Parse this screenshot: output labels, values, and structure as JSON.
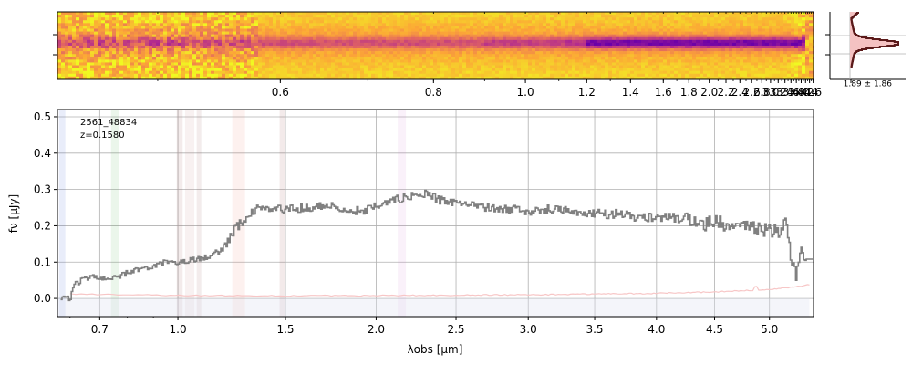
{
  "chart_data": [
    {
      "type": "heatmap",
      "panel": "2d-spectrum",
      "colormap": "plasma_r",
      "x_axis_scale": "reciprocal",
      "xlim": [
        0.44,
        4.62
      ],
      "x_tick_labels": [
        "0.6",
        "0.8",
        "1.0",
        "1.2",
        "1.4",
        "1.6",
        "1.8",
        "2.0",
        "2.2",
        "2.4",
        "2.6",
        "2.8",
        "3.0",
        "3.2",
        "3.4",
        "3.6",
        "3.8",
        "4.0",
        "4.2",
        "4.4",
        "4.6"
      ],
      "x_tick_values": [
        0.6,
        0.8,
        1.0,
        1.2,
        1.4,
        1.6,
        1.8,
        2.0,
        2.2,
        2.4,
        2.6,
        2.8,
        3.0,
        3.2,
        3.4,
        3.6,
        3.8,
        4.0,
        4.2,
        4.4,
        4.6
      ],
      "trace_onset_um": 1.2,
      "colors": {
        "background_low": "#fca636",
        "mid": "#e16462",
        "trace_high": "#7a0da8",
        "edge_noise": "#f0f921"
      }
    },
    {
      "type": "line",
      "panel": "cross-dispersion-profile",
      "annotation": "1.89 ± 1.86",
      "profile_fill_color": "#f4c2c2",
      "profile_line_color": "#5b1a1a"
    },
    {
      "type": "line",
      "panel": "1d-spectrum",
      "x_axis_scale": "sqrt",
      "xlim": [
        0.56,
        5.42
      ],
      "ylim": [
        -0.05,
        0.52
      ],
      "x_tick_labels": [
        "0.7",
        "1.0",
        "1.5",
        "2.0",
        "2.5",
        "3.0",
        "3.5",
        "4.0",
        "4.5",
        "5.0"
      ],
      "x_tick_values": [
        0.7,
        1.0,
        1.5,
        2.0,
        2.5,
        3.0,
        3.5,
        4.0,
        4.5,
        5.0
      ],
      "x_minor_ticks": [
        0.6,
        0.8,
        0.9
      ],
      "y_tick_labels": [
        "0.0",
        "0.1",
        "0.2",
        "0.3",
        "0.4",
        "0.5"
      ],
      "y_tick_values": [
        0.0,
        0.1,
        0.2,
        0.3,
        0.4,
        0.5
      ],
      "xlabel": "λobs [μm]",
      "ylabel": "fν [μJy]",
      "grid": true,
      "annotations": [
        "2561_48834",
        "z=0.1580"
      ],
      "series": [
        {
          "kind": "flux",
          "color": "#808080",
          "style": "steps",
          "x": [
            0.57,
            0.6,
            0.61,
            0.65,
            0.7,
            0.75,
            0.8,
            0.85,
            0.9,
            0.95,
            1.0,
            1.05,
            1.1,
            1.15,
            1.2,
            1.25,
            1.3,
            1.35,
            1.4,
            1.5,
            1.6,
            1.7,
            1.8,
            1.9,
            2.0,
            2.1,
            2.2,
            2.3,
            2.4,
            2.5,
            2.6,
            2.7,
            2.8,
            2.9,
            3.0,
            3.1,
            3.2,
            3.3,
            3.4,
            3.5,
            3.6,
            3.7,
            3.8,
            3.9,
            4.0,
            4.1,
            4.2,
            4.3,
            4.4,
            4.5,
            4.6,
            4.7,
            4.8,
            4.9,
            5.0,
            5.1,
            5.15,
            5.2,
            5.25,
            5.3,
            5.35
          ],
          "y": [
            0.005,
            0.0,
            0.035,
            0.055,
            0.06,
            0.055,
            0.07,
            0.08,
            0.09,
            0.1,
            0.1,
            0.105,
            0.11,
            0.12,
            0.14,
            0.19,
            0.22,
            0.245,
            0.25,
            0.245,
            0.25,
            0.255,
            0.25,
            0.24,
            0.255,
            0.27,
            0.28,
            0.29,
            0.27,
            0.265,
            0.255,
            0.25,
            0.245,
            0.245,
            0.24,
            0.245,
            0.245,
            0.24,
            0.235,
            0.235,
            0.23,
            0.235,
            0.225,
            0.225,
            0.22,
            0.225,
            0.22,
            0.215,
            0.205,
            0.21,
            0.205,
            0.19,
            0.2,
            0.19,
            0.185,
            0.185,
            0.215,
            0.1,
            0.06,
            0.14,
            0.11
          ]
        },
        {
          "kind": "error",
          "color": "#f7c6c6",
          "x": [
            0.6,
            1.0,
            1.5,
            2.0,
            2.5,
            3.0,
            3.5,
            4.0,
            4.5,
            4.8,
            5.0,
            5.2,
            5.38
          ],
          "y": [
            0.012,
            0.008,
            0.007,
            0.008,
            0.009,
            0.01,
            0.012,
            0.014,
            0.018,
            0.022,
            0.025,
            0.03,
            0.038
          ]
        }
      ],
      "bands": [
        {
          "x0": 0.565,
          "x1": 0.585,
          "color": "#4a6fd6",
          "opacity": 0.12
        },
        {
          "x0": 0.74,
          "x1": 0.77,
          "color": "#57b35c",
          "opacity": 0.12
        },
        {
          "x0": 0.995,
          "x1": 1.02,
          "color": "#9c5a5a",
          "opacity": 0.12
        },
        {
          "x0": 1.03,
          "x1": 1.07,
          "color": "#c88a8a",
          "opacity": 0.12
        },
        {
          "x0": 1.08,
          "x1": 1.1,
          "color": "#a06060",
          "opacity": 0.12
        },
        {
          "x0": 1.24,
          "x1": 1.3,
          "color": "#f08a78",
          "opacity": 0.12
        },
        {
          "x0": 1.47,
          "x1": 1.5,
          "color": "#a05050",
          "opacity": 0.12
        },
        {
          "x0": 2.13,
          "x1": 2.18,
          "color": "#d17ad1",
          "opacity": 0.1
        }
      ]
    }
  ]
}
